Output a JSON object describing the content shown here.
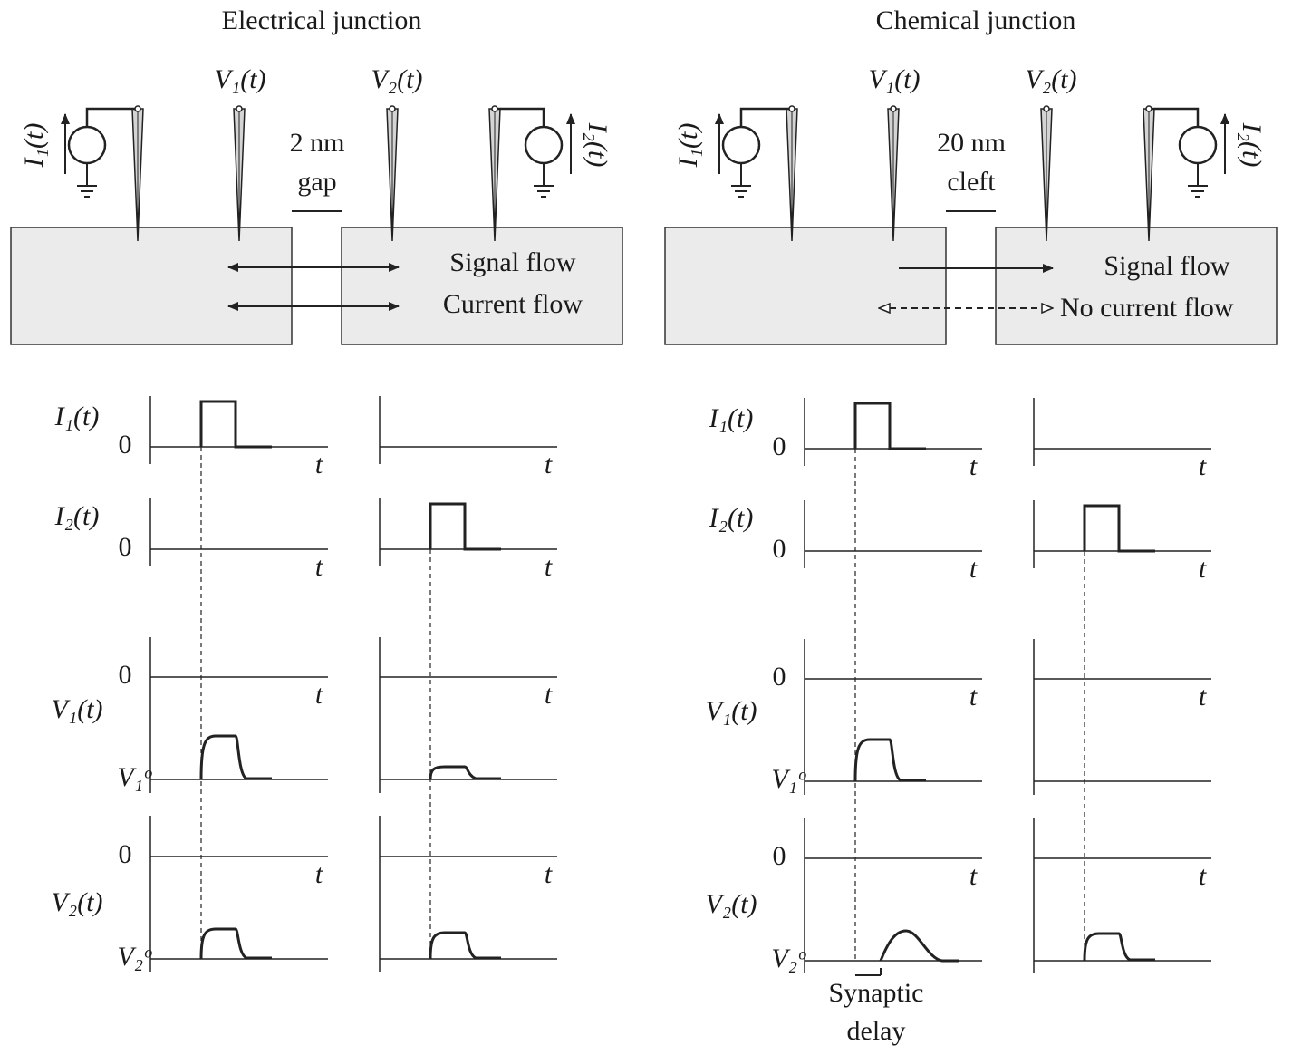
{
  "panels": [
    {
      "title": "Electrical junction",
      "probe_labels": [
        "V₁(t)",
        "V₂(t)"
      ],
      "source_labels": [
        "I₁(t)",
        "I₂(t)"
      ],
      "gap_label": [
        "2 nm",
        "gap"
      ],
      "flows": [
        "Signal flow",
        "Current flow"
      ],
      "traces": [
        {
          "label": "I₁(t)",
          "zero": "0",
          "axis_labels": [
            "t",
            "t"
          ]
        },
        {
          "label": "I₂(t)",
          "zero": "0",
          "axis_labels": [
            "t",
            "t"
          ]
        },
        {
          "label": "V₁(t)",
          "zero": "0",
          "rest": "V₁ᵒ",
          "axis_labels": [
            "t",
            "t"
          ]
        },
        {
          "label": "V₂(t)",
          "zero": "0",
          "rest": "V₂ᵒ",
          "axis_labels": [
            "t",
            "t"
          ]
        }
      ]
    },
    {
      "title": "Chemical junction",
      "probe_labels": [
        "V₁(t)",
        "V₂(t)"
      ],
      "source_labels": [
        "I₁(t)",
        "I₂(t)"
      ],
      "gap_label": [
        "20 nm",
        "cleft"
      ],
      "flows": [
        "Signal flow",
        "No current flow"
      ],
      "traces": [
        {
          "label": "I₁(t)",
          "zero": "0",
          "axis_labels": [
            "t",
            "t"
          ]
        },
        {
          "label": "I₂(t)",
          "zero": "0",
          "axis_labels": [
            "t",
            "t"
          ]
        },
        {
          "label": "V₁(t)",
          "zero": "0",
          "rest": "V₁ᵒ",
          "axis_labels": [
            "t",
            "t"
          ]
        },
        {
          "label": "V₂(t)",
          "zero": "0",
          "rest": "V₂ᵒ",
          "axis_labels": [
            "t",
            "t"
          ]
        }
      ],
      "delay_label": [
        "Synaptic",
        "delay"
      ]
    }
  ]
}
